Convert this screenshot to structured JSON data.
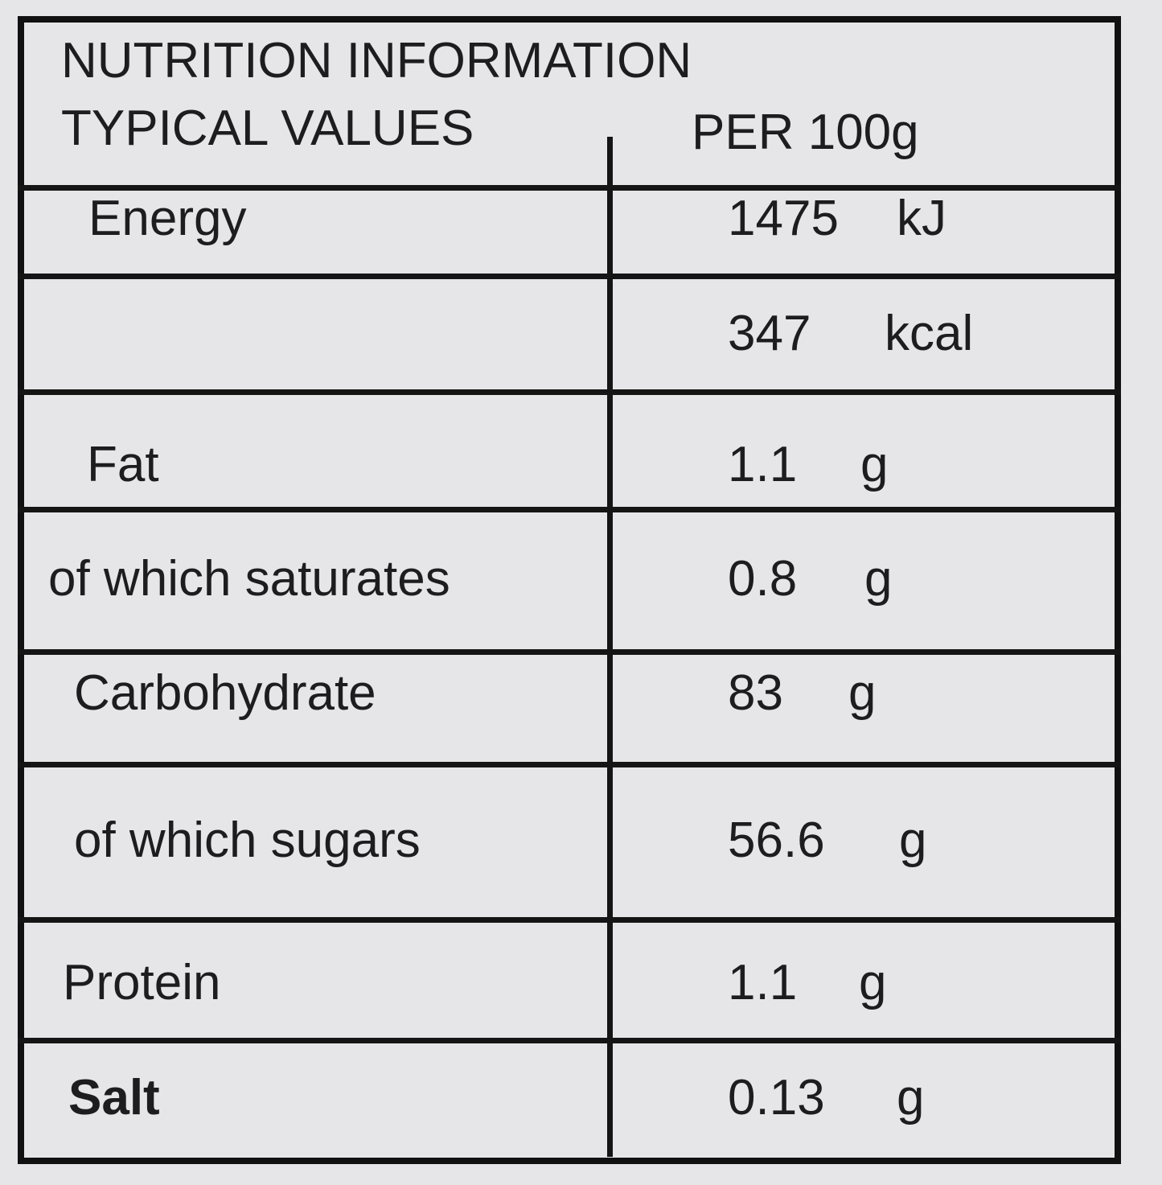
{
  "title": "NUTRITION INFORMATION",
  "header": {
    "left": "TYPICAL VALUES",
    "right": "PER 100g"
  },
  "rows": [
    {
      "label": "Energy",
      "value": 1475,
      "unit": "kJ"
    },
    {
      "value": 347,
      "unit": "kcal"
    },
    {
      "label": "Fat",
      "value": 1.1,
      "unit": "g"
    },
    {
      "label": "of which saturates",
      "value": 0.8,
      "unit": "g"
    },
    {
      "label": "Carbohydrate",
      "value": 83,
      "unit": "g"
    },
    {
      "label": "of which sugars",
      "value": 56.6,
      "unit": "g"
    },
    {
      "label": "Protein",
      "value": 1.1,
      "unit": "g"
    },
    {
      "label": "Salt",
      "value": 0.13,
      "unit": "g"
    }
  ]
}
